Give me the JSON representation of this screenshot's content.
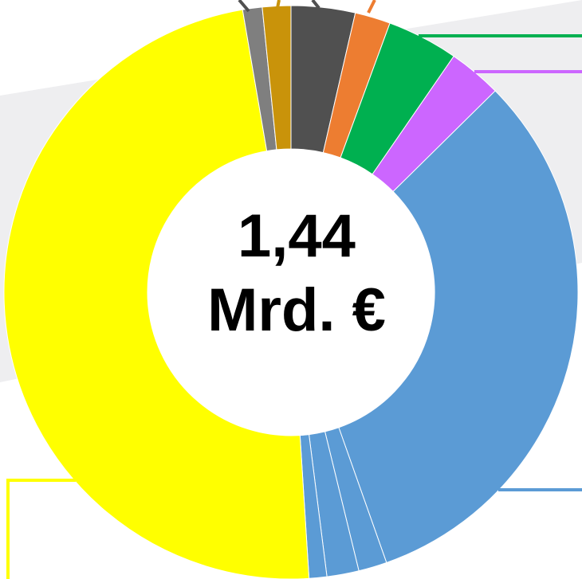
{
  "chart_data": {
    "type": "donut",
    "center_label": [
      "1,44",
      "Mrd. €"
    ],
    "values": [
      3.6,
      2,
      4,
      3,
      32,
      1.6,
      1.8,
      1,
      48.3,
      1.1,
      1.6
    ],
    "colors": [
      "#505050",
      "#ed7d31",
      "#00b050",
      "#cc66ff",
      "#5b9bd5",
      "#5b9bd5",
      "#5b9bd5",
      "#5b9bd5",
      "#ffff00",
      "#7f7f7f",
      "#c9930a"
    ]
  }
}
